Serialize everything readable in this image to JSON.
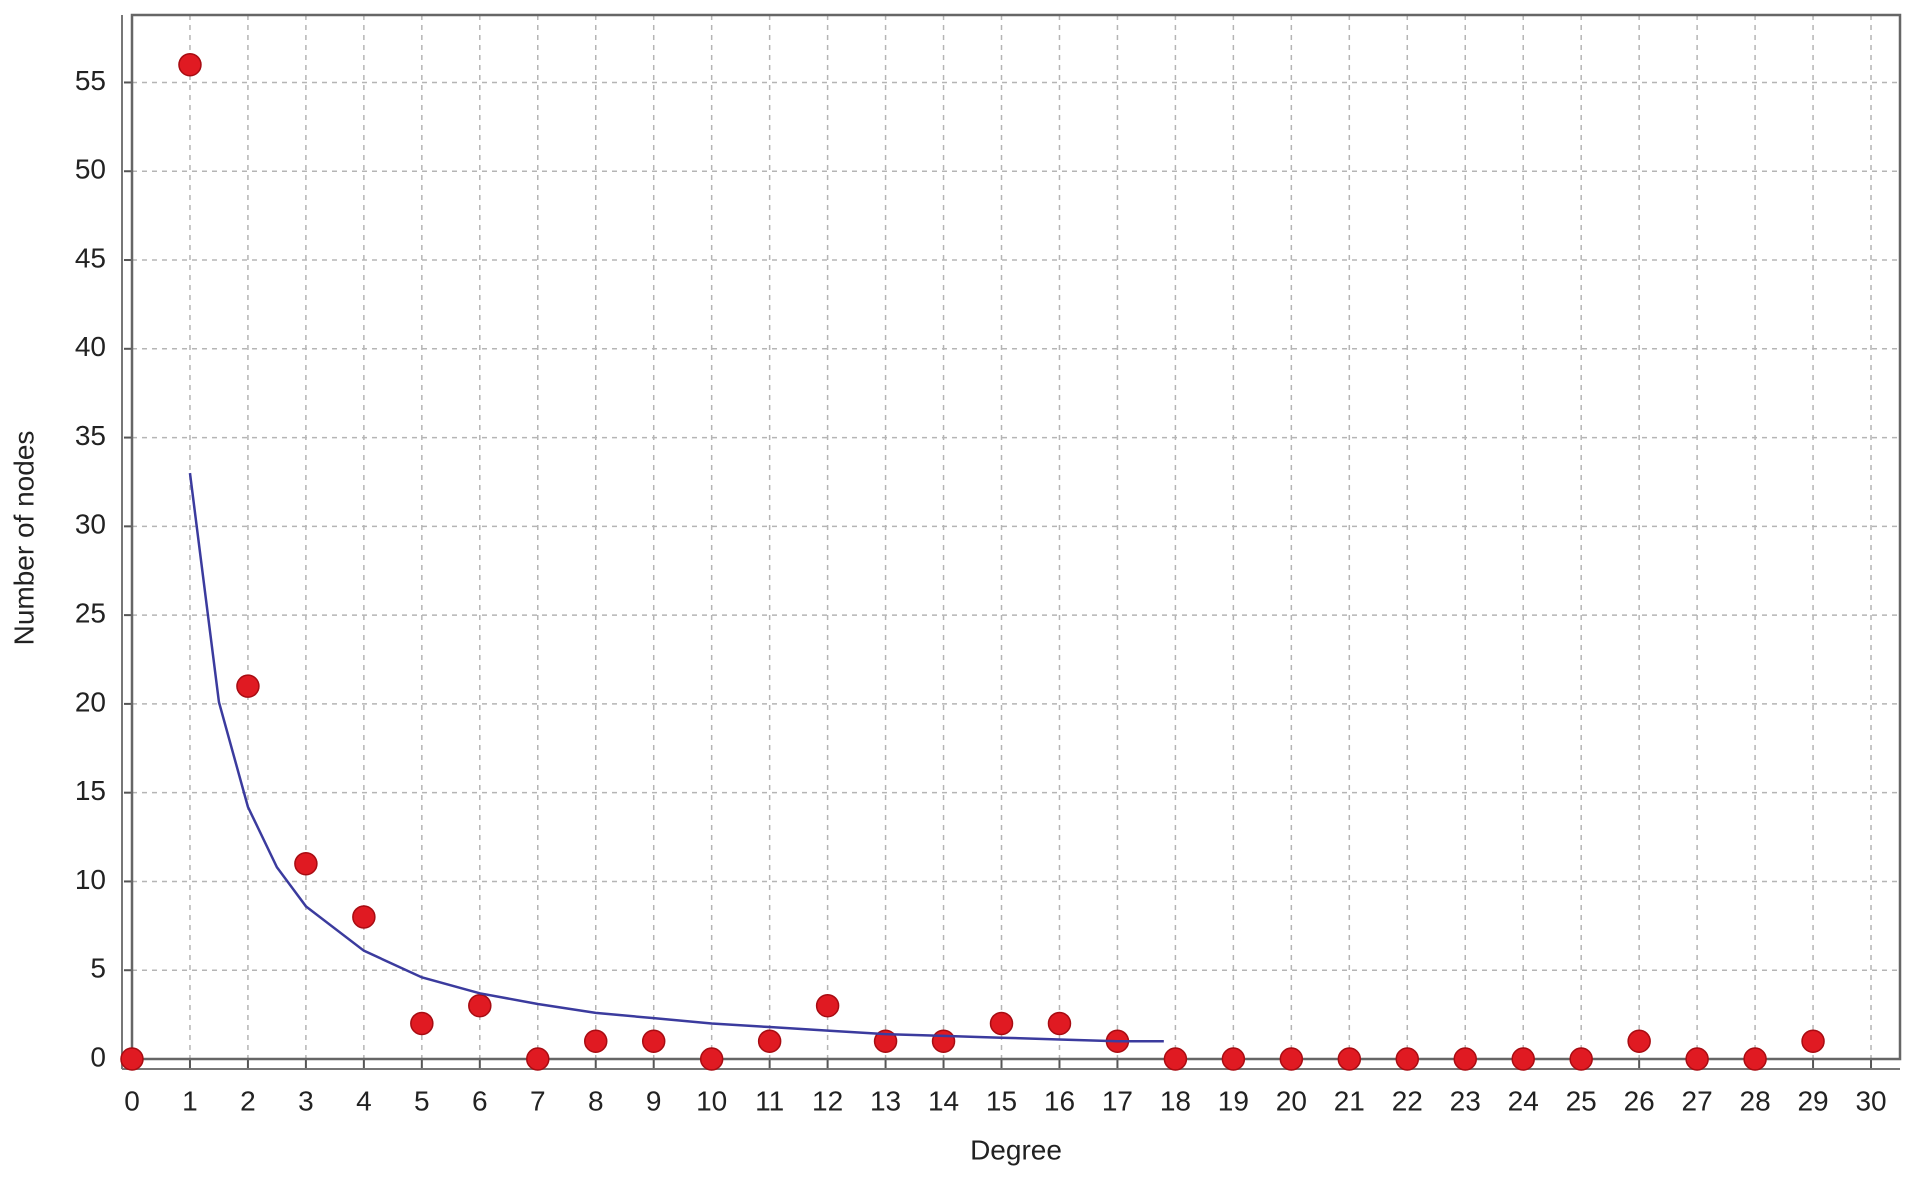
{
  "chart_data": {
    "type": "scatter",
    "x_label": "Degree",
    "y_label": "Number of nodes",
    "xlim": [
      0,
      30.5
    ],
    "ylim": [
      0,
      58.8
    ],
    "xticks": [
      0,
      1,
      2,
      3,
      4,
      5,
      6,
      7,
      8,
      9,
      10,
      11,
      12,
      13,
      14,
      15,
      16,
      17,
      18,
      19,
      20,
      21,
      22,
      23,
      24,
      25,
      26,
      27,
      28,
      29,
      30
    ],
    "yticks": [
      0,
      5,
      10,
      15,
      20,
      25,
      30,
      35,
      40,
      45,
      50,
      55
    ],
    "grid": true,
    "series": [
      {
        "type": "scatter",
        "color": "#e01a22",
        "x": [
          0,
          1,
          2,
          3,
          4,
          5,
          6,
          7,
          8,
          9,
          10,
          11,
          12,
          13,
          14,
          15,
          16,
          17,
          18,
          19,
          20,
          21,
          22,
          23,
          24,
          25,
          26,
          27,
          28,
          29
        ],
        "values": [
          0,
          56,
          21,
          11,
          8,
          2,
          3,
          0,
          1,
          1,
          0,
          1,
          3,
          1,
          1,
          2,
          2,
          1,
          0,
          0,
          0,
          0,
          0,
          0,
          0,
          0,
          1,
          0,
          0,
          1
        ]
      },
      {
        "type": "line",
        "color": "#3b3b9e",
        "x": [
          1,
          1.5,
          2,
          2.5,
          3,
          4,
          5,
          6,
          7,
          8,
          9,
          10,
          11,
          12,
          13,
          14,
          15,
          16,
          17,
          17.8
        ],
        "values": [
          33,
          20.1,
          14.2,
          10.8,
          8.6,
          6.1,
          4.6,
          3.7,
          3.1,
          2.6,
          2.3,
          2.0,
          1.8,
          1.6,
          1.4,
          1.3,
          1.2,
          1.1,
          1.0,
          1.0
        ]
      }
    ]
  }
}
